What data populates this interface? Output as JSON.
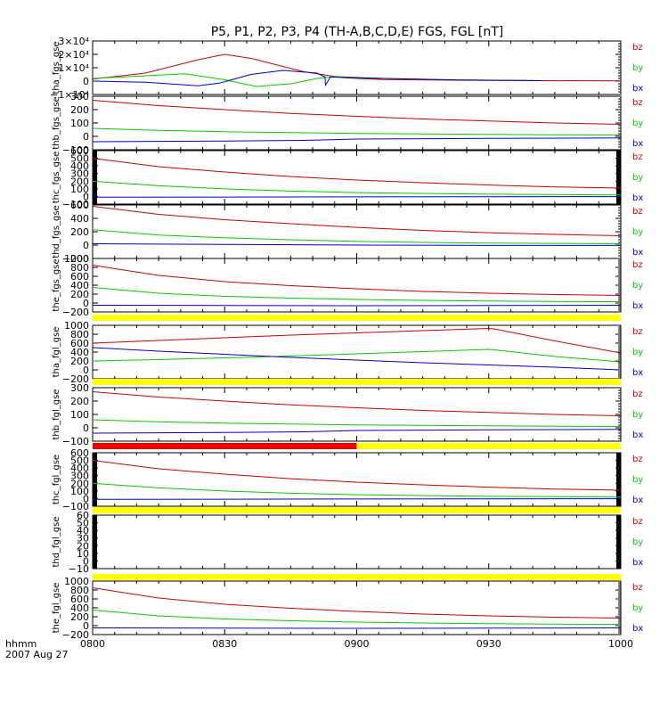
{
  "title": "P5, P1, P2, P3, P4 (TH-A,B,C,D,E) FGS, FGL [nT]",
  "colors": {
    "bz": "#cc0000",
    "by": "#00cc00",
    "bx": "#0000cc",
    "flag_yellow": "#ffff00",
    "flag_red": "#ee0000"
  },
  "footer": {
    "line1": "hhmm",
    "line2": "2007 Aug 27"
  },
  "x_axis": {
    "tick_labels": [
      "0800",
      "0830",
      "0900",
      "0930",
      "1000"
    ],
    "range_hours": [
      8.0,
      10.0
    ]
  },
  "chart_data": [
    {
      "type": "line",
      "ylabel": "tha_fgs_gse",
      "ylim": [
        -10000,
        30000
      ],
      "yticks": [
        {
          "v": 30000,
          "t": "3×10⁴"
        },
        {
          "v": 20000,
          "t": "2×10⁴"
        },
        {
          "v": 10000,
          "t": "1×10⁴"
        },
        {
          "v": 0,
          "t": "0"
        },
        {
          "v": -10000,
          "t": "−1×10⁴"
        }
      ],
      "legend": [
        "bz",
        "by",
        "bx"
      ],
      "side_bars": "none",
      "series": [
        {
          "name": "bz",
          "x": [
            8.0,
            8.2,
            8.4,
            8.5,
            8.6,
            8.8,
            8.95,
            9.1,
            9.4,
            9.7,
            10.0
          ],
          "y": [
            1500,
            6000,
            16000,
            20000,
            17000,
            7000,
            2500,
            1200,
            600,
            300,
            200
          ]
        },
        {
          "name": "by",
          "x": [
            8.0,
            8.2,
            8.35,
            8.5,
            8.62,
            8.75,
            8.85,
            8.92,
            9.1,
            9.4,
            9.7
          ],
          "y": [
            2000,
            4000,
            5500,
            1000,
            -4000,
            -2000,
            2000,
            3500,
            2000,
            900,
            400
          ]
        },
        {
          "name": "bx",
          "x": [
            8.0,
            8.2,
            8.4,
            8.48,
            8.6,
            8.72,
            8.85,
            8.88,
            8.882,
            8.9,
            9.1,
            9.4,
            9.7
          ],
          "y": [
            0,
            -800,
            -3500,
            -1500,
            5000,
            8000,
            6000,
            3000,
            -3000,
            3000,
            2000,
            800,
            300
          ]
        }
      ]
    },
    {
      "type": "line",
      "ylabel": "thb_fgs_gse",
      "ylim": [
        -100,
        300
      ],
      "yticks": [
        {
          "v": 300,
          "t": "300"
        },
        {
          "v": 200,
          "t": "200"
        },
        {
          "v": 100,
          "t": "100"
        },
        {
          "v": 0,
          "t": "0"
        },
        {
          "v": -100,
          "t": "−100"
        }
      ],
      "legend": [
        "bz",
        "by",
        "bx"
      ],
      "side_bars": "none",
      "series": [
        {
          "name": "bz",
          "x": [
            8.0,
            8.25,
            8.5,
            8.75,
            9.0,
            9.25,
            9.5,
            9.75,
            10.0
          ],
          "y": [
            270,
            230,
            200,
            172,
            150,
            130,
            115,
            100,
            90
          ]
        },
        {
          "name": "by",
          "x": [
            8.0,
            8.25,
            8.5,
            8.75,
            9.0,
            9.25,
            9.5,
            9.75,
            10.0
          ],
          "y": [
            60,
            45,
            35,
            28,
            22,
            18,
            15,
            12,
            10
          ]
        },
        {
          "name": "bx",
          "x": [
            8.0,
            8.5,
            8.8,
            9.0,
            9.5,
            10.0
          ],
          "y": [
            -40,
            -35,
            -30,
            -20,
            -15,
            -12
          ]
        }
      ]
    },
    {
      "type": "line",
      "ylabel": "thc_fgs_gse",
      "ylim": [
        -100,
        600
      ],
      "yticks": [
        {
          "v": 600,
          "t": "600"
        },
        {
          "v": 500,
          "t": "500"
        },
        {
          "v": 400,
          "t": "400"
        },
        {
          "v": 300,
          "t": "300"
        },
        {
          "v": 200,
          "t": "200"
        },
        {
          "v": 100,
          "t": "100"
        },
        {
          "v": 0,
          "t": "0"
        },
        {
          "v": -100,
          "t": "−100"
        }
      ],
      "legend": [
        "bz",
        "by",
        "bx"
      ],
      "side_bars": "both",
      "series": [
        {
          "name": "bz",
          "x": [
            8.0,
            8.25,
            8.5,
            8.75,
            9.0,
            9.25,
            9.5,
            9.75,
            10.0
          ],
          "y": [
            500,
            390,
            320,
            260,
            215,
            180,
            150,
            125,
            110
          ]
        },
        {
          "name": "by",
          "x": [
            8.0,
            8.25,
            8.5,
            8.75,
            9.0,
            9.25,
            9.5,
            9.75,
            10.0
          ],
          "y": [
            200,
            140,
            100,
            70,
            50,
            40,
            30,
            25,
            20
          ]
        },
        {
          "name": "bx",
          "x": [
            8.0,
            8.5,
            9.0,
            9.5,
            10.0
          ],
          "y": [
            -10,
            -8,
            -5,
            -3,
            -2
          ]
        }
      ]
    },
    {
      "type": "line",
      "ylabel": "thd_fgs_gse",
      "ylim": [
        -200,
        600
      ],
      "yticks": [
        {
          "v": 600,
          "t": "600"
        },
        {
          "v": 400,
          "t": "400"
        },
        {
          "v": 200,
          "t": "200"
        },
        {
          "v": 0,
          "t": "0"
        },
        {
          "v": -200,
          "t": "−200"
        }
      ],
      "legend": [
        "bz",
        "by",
        "bx"
      ],
      "side_bars": "none",
      "series": [
        {
          "name": "bz",
          "x": [
            8.0,
            8.25,
            8.5,
            8.75,
            9.0,
            9.25,
            9.5,
            9.75,
            10.0
          ],
          "y": [
            580,
            460,
            380,
            320,
            265,
            220,
            185,
            160,
            140
          ]
        },
        {
          "name": "by",
          "x": [
            8.0,
            8.25,
            8.5,
            8.75,
            9.0,
            9.25,
            9.5,
            9.75,
            10.0
          ],
          "y": [
            230,
            150,
            110,
            80,
            55,
            40,
            30,
            25,
            20
          ]
        },
        {
          "name": "bx",
          "x": [
            8.0,
            8.5,
            9.0,
            9.5,
            10.0
          ],
          "y": [
            20,
            10,
            0,
            -5,
            -5
          ]
        }
      ]
    },
    {
      "type": "line",
      "ylabel": "the_fgs_gse",
      "ylim": [
        -200,
        1000
      ],
      "yticks": [
        {
          "v": 1000,
          "t": "1000"
        },
        {
          "v": 800,
          "t": "800"
        },
        {
          "v": 600,
          "t": "600"
        },
        {
          "v": 400,
          "t": "400"
        },
        {
          "v": 200,
          "t": "200"
        },
        {
          "v": 0,
          "t": "0"
        },
        {
          "v": -200,
          "t": "−200"
        }
      ],
      "legend": [
        "bz",
        "by",
        "bx"
      ],
      "side_bars": "none",
      "series": [
        {
          "name": "bz",
          "x": [
            8.0,
            8.25,
            8.5,
            8.75,
            9.0,
            9.25,
            9.5,
            9.75,
            10.0
          ],
          "y": [
            850,
            620,
            480,
            390,
            320,
            260,
            220,
            190,
            170
          ]
        },
        {
          "name": "by",
          "x": [
            8.0,
            8.25,
            8.5,
            8.75,
            9.0,
            9.25,
            9.5,
            9.75,
            10.0
          ],
          "y": [
            350,
            220,
            150,
            110,
            80,
            60,
            45,
            35,
            30
          ]
        },
        {
          "name": "bx",
          "x": [
            8.0,
            8.5,
            9.0,
            9.5,
            10.0
          ],
          "y": [
            -50,
            -55,
            -60,
            -55,
            -50
          ]
        }
      ]
    },
    {
      "type": "line",
      "ylabel": "tha_fgl_gse",
      "ylim": [
        -200,
        1000
      ],
      "yticks": [
        {
          "v": 1000,
          "t": "1000"
        },
        {
          "v": 800,
          "t": "800"
        },
        {
          "v": 600,
          "t": "600"
        },
        {
          "v": 400,
          "t": "400"
        },
        {
          "v": 200,
          "t": "200"
        },
        {
          "v": 0,
          "t": "0"
        },
        {
          "v": -200,
          "t": "−200"
        }
      ],
      "legend": [
        "bz",
        "by",
        "bx"
      ],
      "side_bars": "none",
      "flag_bar": [
        {
          "color": "flag_yellow",
          "x0": 8.0,
          "x1": 10.0
        }
      ],
      "series": [
        {
          "name": "bz",
          "x": [
            8.0,
            8.25,
            8.5,
            8.75,
            9.0,
            9.25,
            9.5,
            9.52,
            9.75,
            10.0
          ],
          "y": [
            600,
            660,
            720,
            780,
            830,
            880,
            930,
            920,
            650,
            380
          ]
        },
        {
          "name": "by",
          "x": [
            8.0,
            8.25,
            8.5,
            8.75,
            9.0,
            9.25,
            9.5,
            9.52,
            9.75,
            10.0
          ],
          "y": [
            200,
            230,
            270,
            310,
            360,
            410,
            460,
            450,
            300,
            180
          ]
        },
        {
          "name": "bx",
          "x": [
            8.0,
            8.25,
            8.5,
            8.75,
            9.0,
            9.25,
            9.5,
            9.75,
            10.0
          ],
          "y": [
            500,
            420,
            350,
            280,
            220,
            160,
            110,
            60,
            0
          ]
        }
      ]
    },
    {
      "type": "line",
      "ylabel": "thb_fgl_gse",
      "ylim": [
        -100,
        300
      ],
      "yticks": [
        {
          "v": 300,
          "t": "300"
        },
        {
          "v": 200,
          "t": "200"
        },
        {
          "v": 100,
          "t": "100"
        },
        {
          "v": 0,
          "t": "0"
        },
        {
          "v": -100,
          "t": "−100"
        }
      ],
      "legend": [
        "bz",
        "by",
        "bx"
      ],
      "side_bars": "none",
      "flag_bar": [
        {
          "color": "flag_yellow",
          "x0": 8.0,
          "x1": 10.0
        }
      ],
      "series": [
        {
          "name": "bz",
          "x": [
            8.0,
            8.25,
            8.5,
            8.75,
            9.0,
            9.25,
            9.5,
            9.75,
            10.0
          ],
          "y": [
            270,
            230,
            200,
            172,
            150,
            130,
            115,
            100,
            90
          ]
        },
        {
          "name": "by",
          "x": [
            8.0,
            8.25,
            8.5,
            8.75,
            9.0,
            9.25,
            9.5,
            9.75,
            10.0
          ],
          "y": [
            60,
            45,
            35,
            28,
            22,
            18,
            15,
            12,
            10
          ]
        },
        {
          "name": "bx",
          "x": [
            8.0,
            8.5,
            8.8,
            9.0,
            9.5,
            10.0
          ],
          "y": [
            -40,
            -35,
            -30,
            -20,
            -15,
            -12
          ]
        }
      ]
    },
    {
      "type": "line",
      "ylabel": "thc_fgl_gse",
      "ylim": [
        -100,
        600
      ],
      "yticks": [
        {
          "v": 600,
          "t": "600"
        },
        {
          "v": 500,
          "t": "500"
        },
        {
          "v": 400,
          "t": "400"
        },
        {
          "v": 300,
          "t": "300"
        },
        {
          "v": 200,
          "t": "200"
        },
        {
          "v": 100,
          "t": "100"
        },
        {
          "v": 0,
          "t": "0"
        },
        {
          "v": -100,
          "t": "−100"
        }
      ],
      "legend": [
        "bz",
        "by",
        "bx"
      ],
      "side_bars": "both",
      "flag_bar": [
        {
          "color": "flag_red",
          "x0": 8.0,
          "x1": 9.0
        },
        {
          "color": "flag_yellow",
          "x0": 9.0,
          "x1": 10.0
        }
      ],
      "series": [
        {
          "name": "bz",
          "x": [
            8.0,
            8.25,
            8.5,
            8.75,
            9.0,
            9.25,
            9.5,
            9.75,
            10.0
          ],
          "y": [
            500,
            390,
            320,
            260,
            215,
            180,
            150,
            125,
            110
          ]
        },
        {
          "name": "by",
          "x": [
            8.0,
            8.25,
            8.5,
            8.75,
            9.0,
            9.25,
            9.5,
            9.75,
            10.0
          ],
          "y": [
            200,
            140,
            100,
            70,
            50,
            40,
            30,
            25,
            20
          ]
        },
        {
          "name": "bx",
          "x": [
            8.0,
            8.5,
            9.0,
            9.5,
            10.0
          ],
          "y": [
            -10,
            -8,
            -5,
            -3,
            -2
          ]
        }
      ]
    },
    {
      "type": "line",
      "ylabel": "thd_fgl_gse",
      "ylim": [
        -10,
        60
      ],
      "yticks": [
        {
          "v": 60,
          "t": "60"
        },
        {
          "v": 50,
          "t": "50"
        },
        {
          "v": 40,
          "t": "40"
        },
        {
          "v": 30,
          "t": "30"
        },
        {
          "v": 20,
          "t": "20"
        },
        {
          "v": 10,
          "t": "10"
        },
        {
          "v": 0,
          "t": "0"
        },
        {
          "v": -10,
          "t": "−10"
        }
      ],
      "legend": [
        "bz",
        "by",
        "bx"
      ],
      "side_bars": "both",
      "flag_bar": [
        {
          "color": "flag_yellow",
          "x0": 8.0,
          "x1": 10.0
        }
      ],
      "series": []
    },
    {
      "type": "line",
      "ylabel": "the_fgl_gse",
      "ylim": [
        -200,
        1000
      ],
      "yticks": [
        {
          "v": 1000,
          "t": "1000"
        },
        {
          "v": 800,
          "t": "800"
        },
        {
          "v": 600,
          "t": "600"
        },
        {
          "v": 400,
          "t": "400"
        },
        {
          "v": 200,
          "t": "200"
        },
        {
          "v": 0,
          "t": "0"
        },
        {
          "v": -200,
          "t": "−200"
        }
      ],
      "legend": [
        "bz",
        "by",
        "bx"
      ],
      "side_bars": "none",
      "flag_bar": [
        {
          "color": "flag_yellow",
          "x0": 8.0,
          "x1": 10.0
        }
      ],
      "series": [
        {
          "name": "bz",
          "x": [
            8.0,
            8.25,
            8.5,
            8.75,
            9.0,
            9.25,
            9.5,
            9.75,
            10.0
          ],
          "y": [
            850,
            620,
            480,
            390,
            320,
            260,
            220,
            190,
            170
          ]
        },
        {
          "name": "by",
          "x": [
            8.0,
            8.25,
            8.5,
            8.75,
            9.0,
            9.25,
            9.5,
            9.75,
            10.0
          ],
          "y": [
            350,
            220,
            150,
            110,
            80,
            60,
            45,
            35,
            30
          ]
        },
        {
          "name": "bx",
          "x": [
            8.0,
            8.5,
            9.0,
            9.5,
            10.0
          ],
          "y": [
            -50,
            -55,
            -60,
            -55,
            -50
          ]
        }
      ]
    }
  ]
}
